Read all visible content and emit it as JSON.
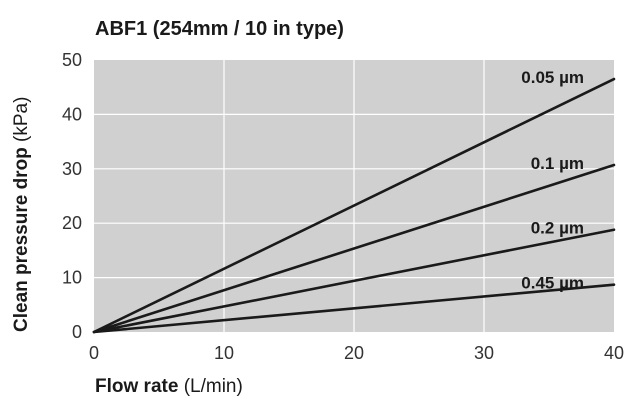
{
  "chart_data": {
    "type": "line",
    "title": "ABF1 (254mm / 10 in type)",
    "xlabel_main": "Flow rate",
    "xlabel_unit": "(L/min)",
    "ylabel_main": "Clean pressure drop",
    "ylabel_unit": "(kPa)",
    "xlim": [
      0,
      40
    ],
    "ylim": [
      0,
      50
    ],
    "x_ticks": [
      "0",
      "10",
      "20",
      "30",
      "40"
    ],
    "y_ticks": [
      "0",
      "10",
      "20",
      "30",
      "40",
      "50"
    ],
    "grid": true,
    "background_color": "#d0d0d0",
    "grid_color": "#ffffff",
    "line_color": "#1a1a1a",
    "series": [
      {
        "name": "0.05 µm",
        "x": [
          0,
          40
        ],
        "y": [
          0,
          46.5
        ]
      },
      {
        "name": "0.1 µm",
        "x": [
          0,
          40
        ],
        "y": [
          0,
          30.7
        ]
      },
      {
        "name": "0.2 µm",
        "x": [
          0,
          40
        ],
        "y": [
          0,
          18.8
        ]
      },
      {
        "name": "0.45 µm",
        "x": [
          0,
          40
        ],
        "y": [
          0,
          8.7
        ]
      }
    ]
  }
}
